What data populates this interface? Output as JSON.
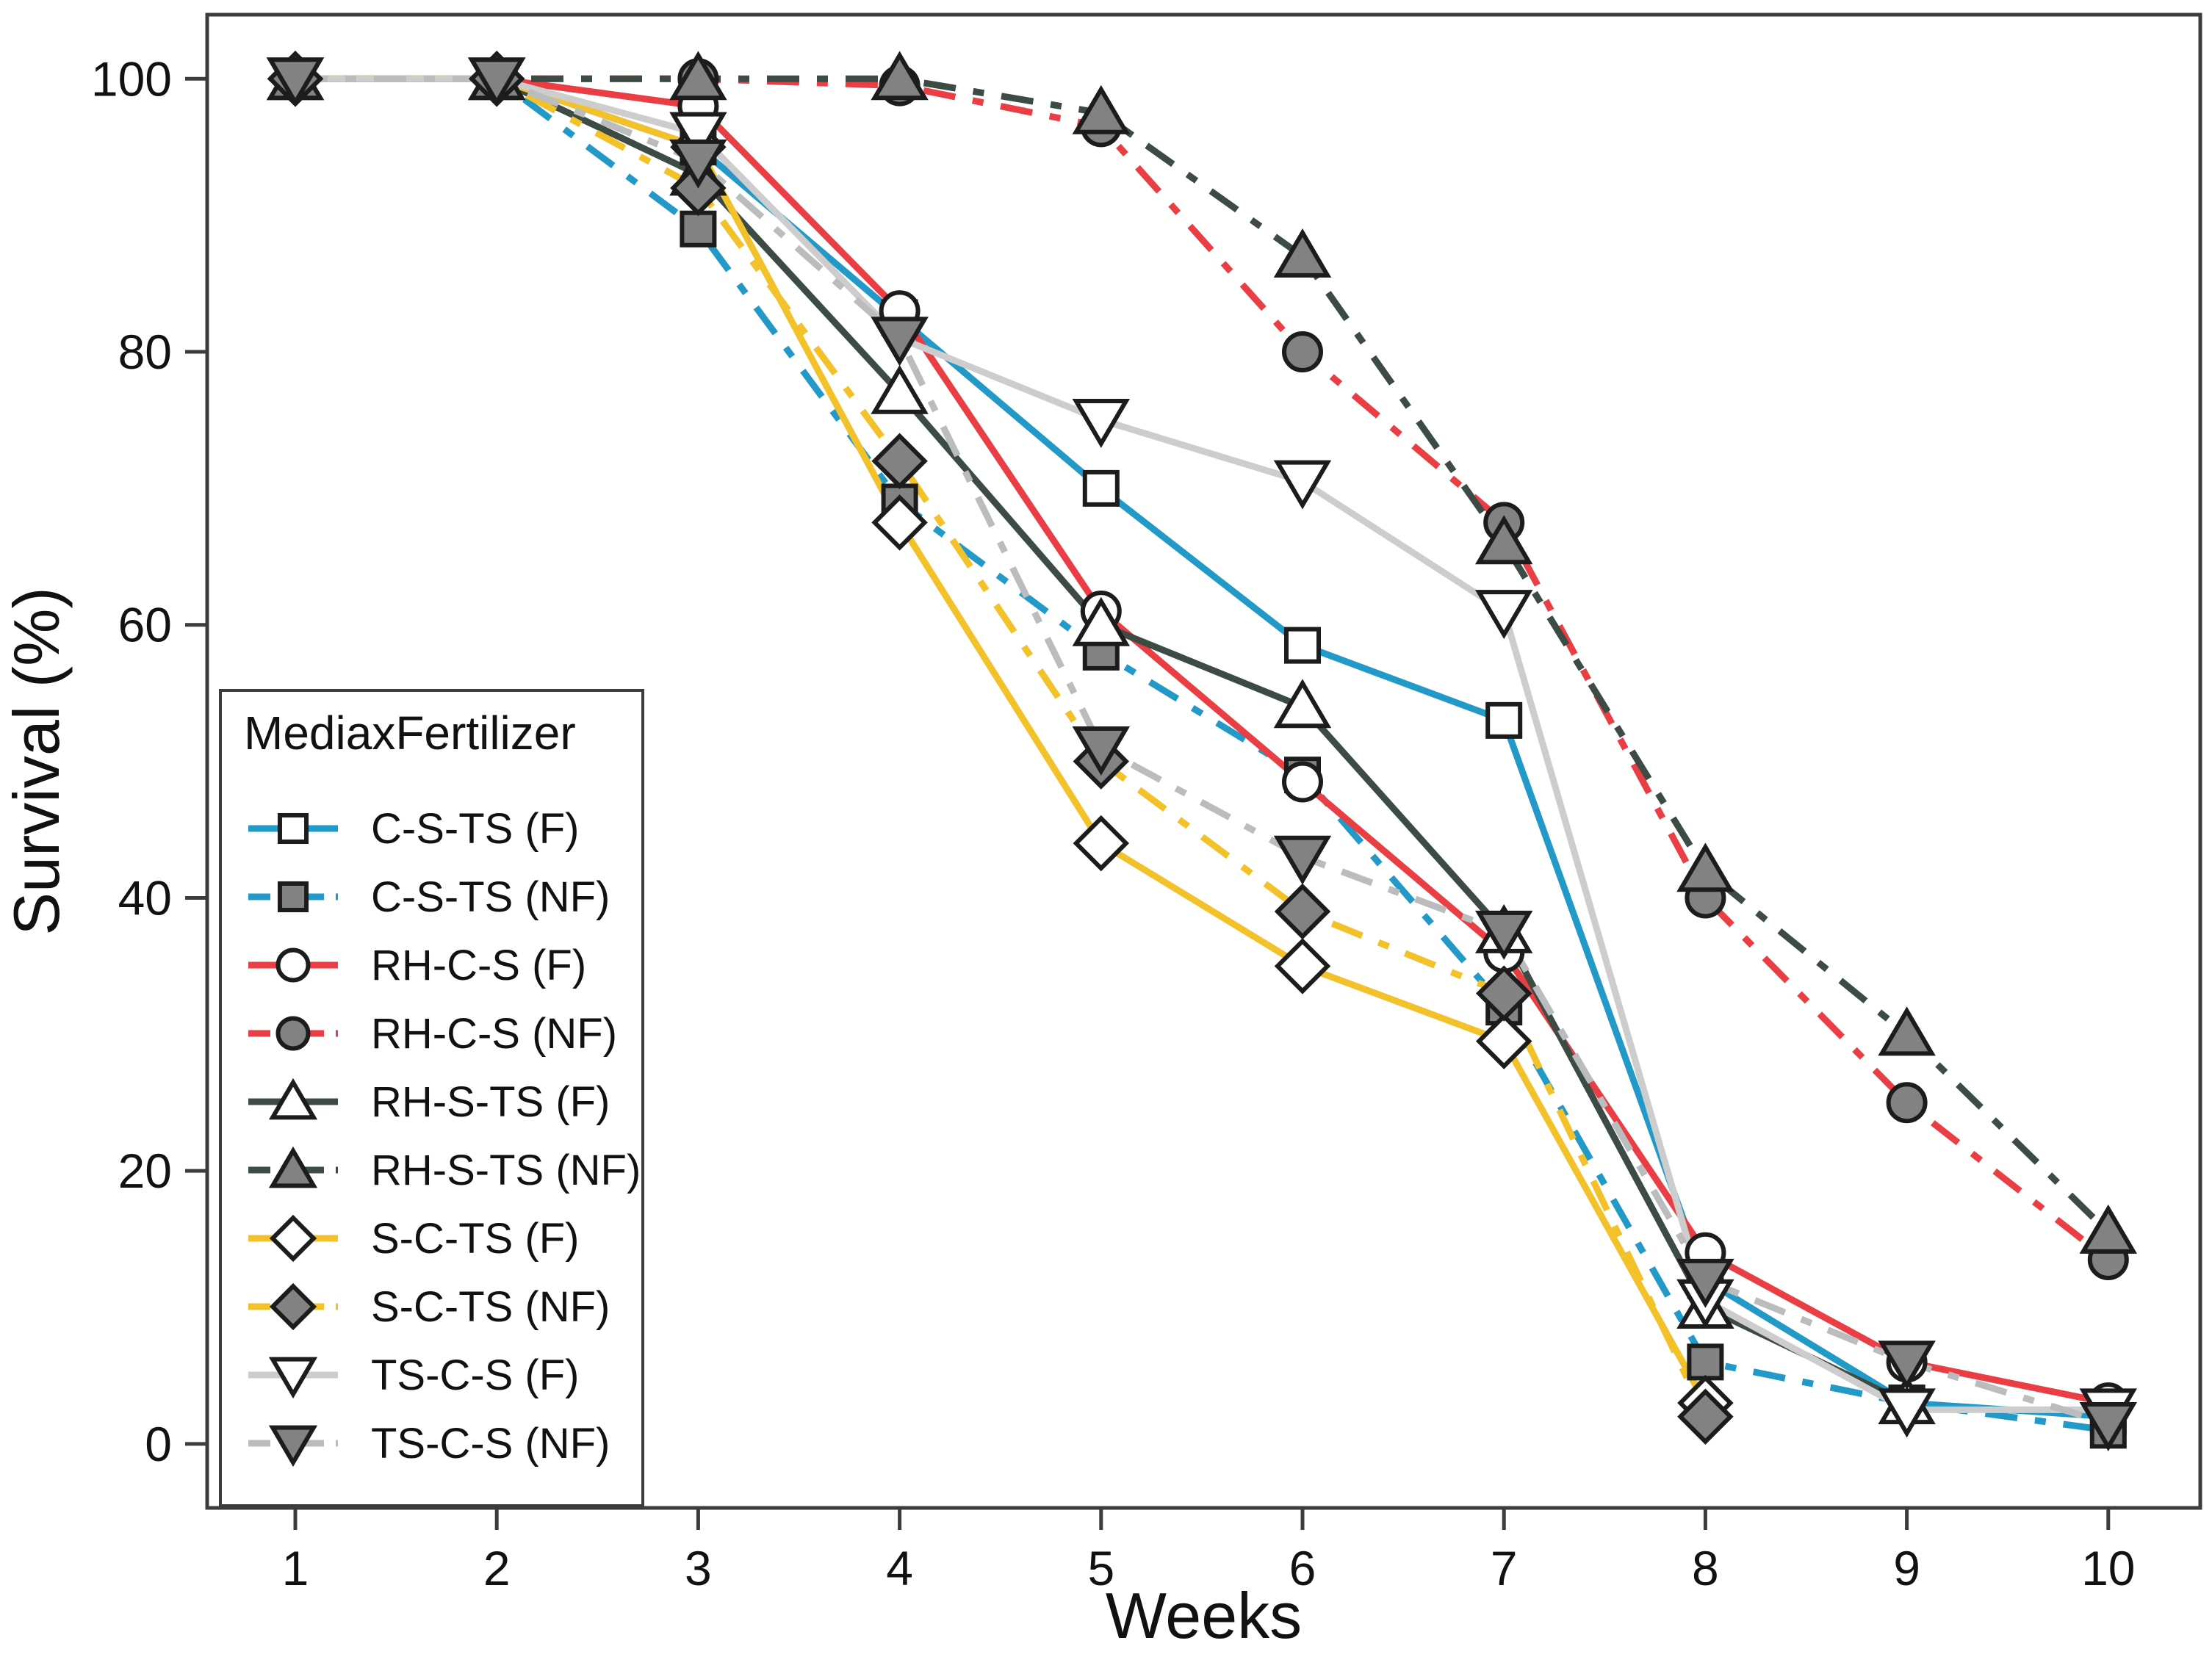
{
  "chart_data": {
    "type": "line",
    "title": "",
    "xlabel": "Weeks",
    "ylabel": "Survival (%)",
    "x": [
      1,
      2,
      3,
      4,
      5,
      6,
      7,
      8,
      9,
      10
    ],
    "xticks": [
      1,
      2,
      3,
      4,
      5,
      6,
      7,
      8,
      9,
      10
    ],
    "yticks": [
      0,
      20,
      40,
      60,
      80,
      100
    ],
    "ylim": [
      0,
      100
    ],
    "grid": false,
    "legend_title": "MediaxFertilizer",
    "legend_position": "inside bottom-left",
    "panel_border_color": "#3c3c3c",
    "marker_fill": "#828282",
    "marker_stroke": "#1c1c1c",
    "open_marker_fill": "#ffffff",
    "series": [
      {
        "name": "C-S-TS (F)",
        "color": "#2299C7",
        "style": "solid",
        "marker": "square",
        "filled": false,
        "values": [
          100,
          100,
          95,
          82.5,
          70,
          58.5,
          53,
          12,
          3,
          2
        ]
      },
      {
        "name": "C-S-TS (NF)",
        "color": "#2299C7",
        "style": "dashdot",
        "marker": "square",
        "filled": true,
        "values": [
          100,
          100,
          89,
          69,
          58,
          49,
          32,
          6,
          3,
          1
        ]
      },
      {
        "name": "RH-C-S (F)",
        "color": "#EA3E45",
        "style": "solid",
        "marker": "circle",
        "filled": false,
        "values": [
          100,
          100,
          98,
          83,
          61,
          48.5,
          36,
          14,
          6,
          3
        ]
      },
      {
        "name": "RH-C-S (NF)",
        "color": "#EA3E45",
        "style": "dashdot",
        "marker": "circle",
        "filled": true,
        "values": [
          100,
          100,
          100,
          99.5,
          96.5,
          80,
          67.5,
          40,
          25,
          13.5
        ]
      },
      {
        "name": "RH-S-TS (F)",
        "color": "#3D4B45",
        "style": "solid",
        "marker": "triangle",
        "filled": false,
        "values": [
          100,
          100,
          93,
          77,
          60,
          54,
          37.5,
          10,
          3,
          null
        ]
      },
      {
        "name": "RH-S-TS (NF)",
        "color": "#3D4B45",
        "style": "dashdot",
        "marker": "triangle",
        "filled": true,
        "values": [
          100,
          100,
          100,
          100,
          97.5,
          87,
          66,
          42,
          30,
          15.5
        ]
      },
      {
        "name": "S-C-TS (F)",
        "color": "#F3C22B",
        "style": "solid",
        "marker": "diamond",
        "filled": false,
        "values": [
          100,
          100,
          95,
          67.5,
          44,
          35,
          29.5,
          3,
          null,
          null
        ]
      },
      {
        "name": "S-C-TS (NF)",
        "color": "#F3C22B",
        "style": "dashdot",
        "marker": "diamond",
        "filled": true,
        "values": [
          100,
          100,
          92,
          72,
          50,
          39,
          33,
          2,
          null,
          null
        ]
      },
      {
        "name": "TS-C-S (F)",
        "color": "#CDCDCD",
        "style": "solid",
        "marker": "tridown",
        "filled": false,
        "values": [
          100,
          100,
          96,
          81,
          75,
          70.5,
          61,
          10.5,
          2.5,
          2.5
        ]
      },
      {
        "name": "TS-C-S (NF)",
        "color": "#BBBCBE",
        "style": "dashdot",
        "marker": "tridown",
        "filled": true,
        "values": [
          100,
          100,
          94,
          81,
          51,
          43,
          37.5,
          12,
          6,
          1.5
        ]
      }
    ]
  }
}
